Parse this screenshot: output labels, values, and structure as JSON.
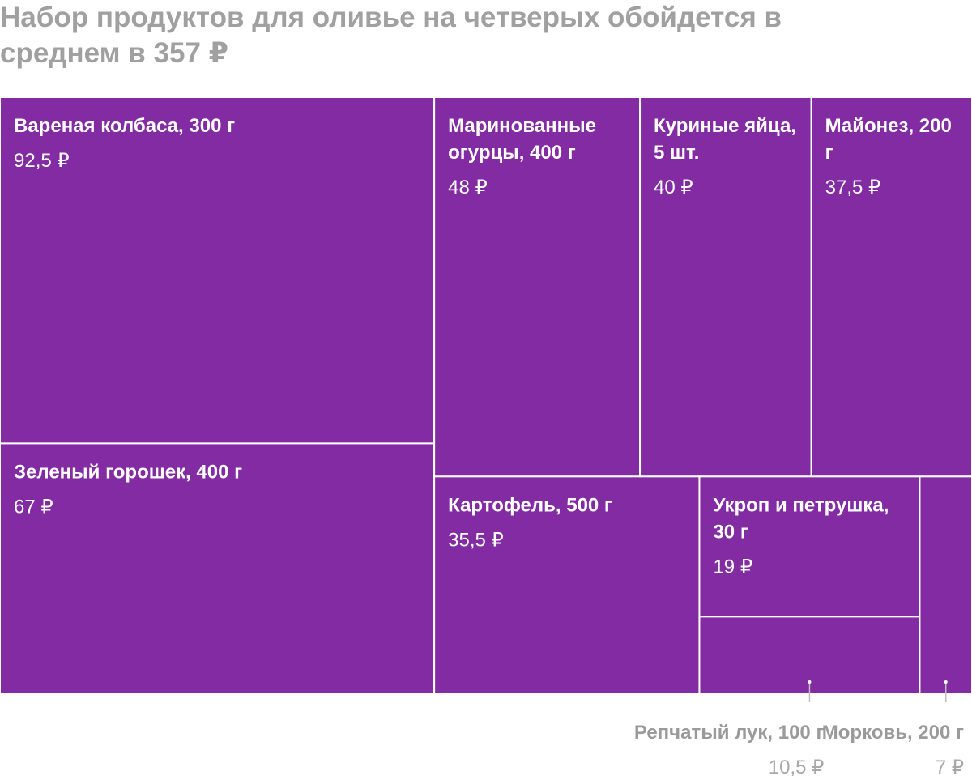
{
  "chart_data": {
    "type": "treemap",
    "title": "Набор продуктов для оливье на четверых обойдется в среднем в 357 ₽",
    "color": "#832ba3",
    "items": [
      {
        "name": "Вареная колбаса, 300 г",
        "value": 92.5,
        "value_label": "92,5 ₽"
      },
      {
        "name": "Зеленый горошек, 400 г",
        "value": 67,
        "value_label": "67 ₽"
      },
      {
        "name": "Маринованные огурцы, 400 г",
        "value": 48,
        "value_label": "48 ₽"
      },
      {
        "name": "Куриные яйца, 5 шт.",
        "value": 40,
        "value_label": "40 ₽"
      },
      {
        "name": "Майонез, 200 г",
        "value": 37.5,
        "value_label": "37,5 ₽"
      },
      {
        "name": "Картофель, 500 г",
        "value": 35.5,
        "value_label": "35,5 ₽"
      },
      {
        "name": "Укроп и петрушка, 30 г",
        "value": 19,
        "value_label": "19 ₽"
      },
      {
        "name": "Репчатый лук, 100 г",
        "value": 10.5,
        "value_label": "10,5 ₽"
      },
      {
        "name": "Морковь, 200 г",
        "value": 7,
        "value_label": "7 ₽"
      }
    ]
  }
}
